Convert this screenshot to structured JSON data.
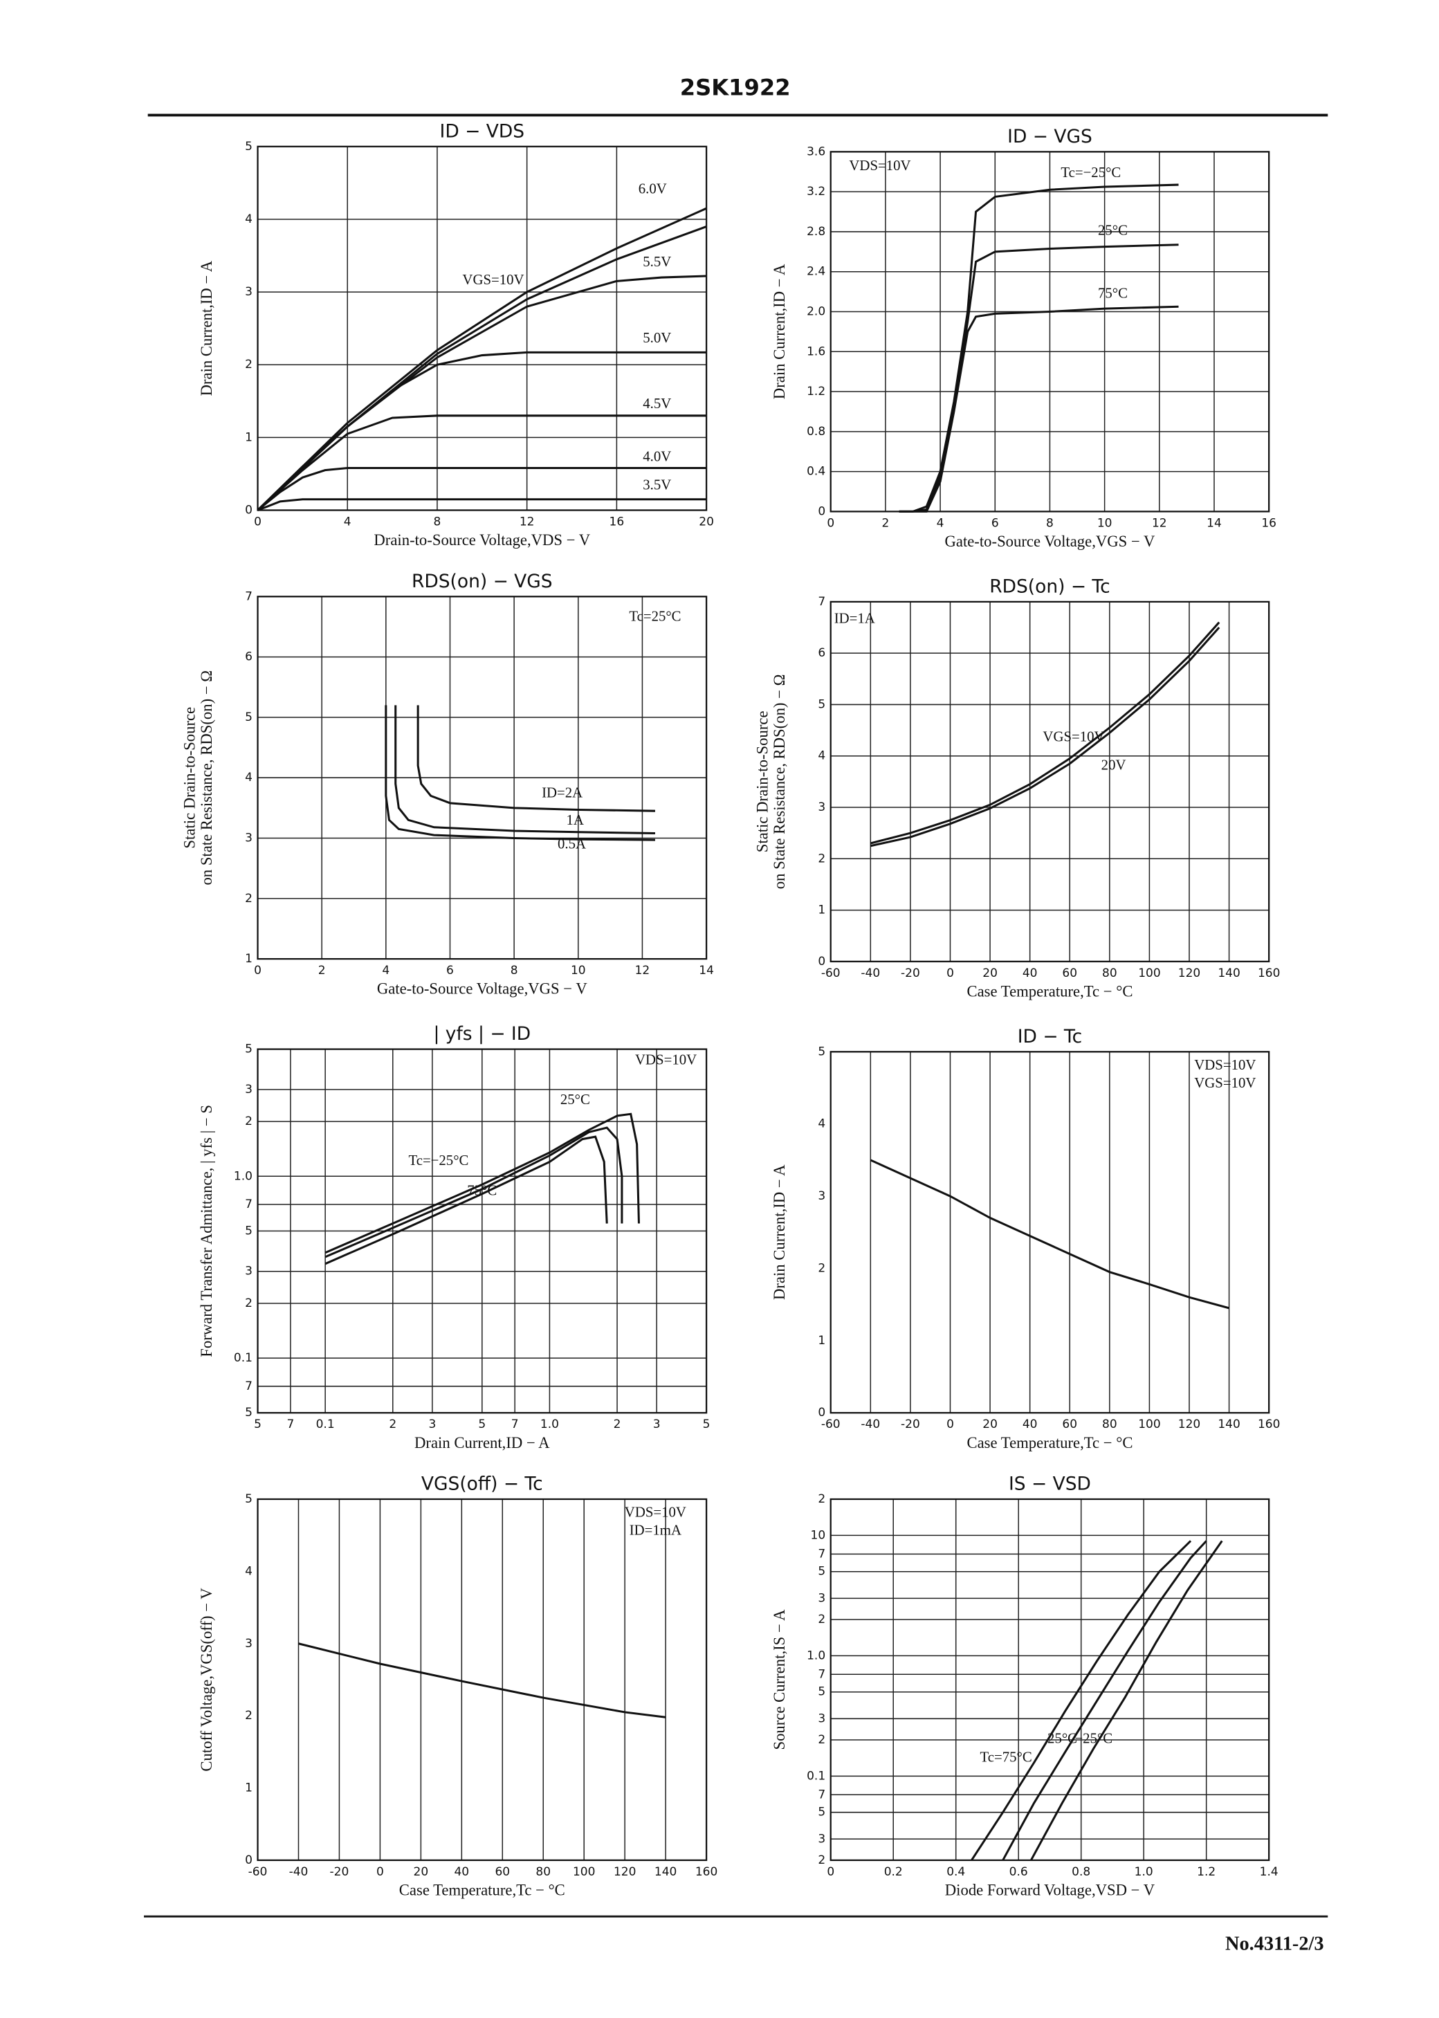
{
  "header": {
    "title": "2SK1922"
  },
  "footer": {
    "code": "No.4311-2/3"
  },
  "chart_data": [
    {
      "type": "line",
      "title": "ID − VDS",
      "x_label": "Drain-to-Source Voltage,VDS − V",
      "y_label": [
        "Drain Current,ID − A"
      ],
      "xlim": [
        0,
        20
      ],
      "xticks": [
        0,
        4,
        8,
        12,
        16,
        20
      ],
      "ylim": [
        0,
        5
      ],
      "yticks": [
        0,
        1,
        2,
        3,
        4,
        5
      ],
      "grid": "both",
      "series": [
        {
          "name": "3.5V",
          "color": "#111",
          "x": [
            0,
            1,
            2,
            3,
            20
          ],
          "values": [
            0,
            0.12,
            0.15,
            0.15,
            0.15
          ]
        },
        {
          "name": "4.0V",
          "color": "#111",
          "x": [
            0,
            1,
            2,
            3,
            4,
            20
          ],
          "values": [
            0,
            0.25,
            0.45,
            0.55,
            0.58,
            0.58
          ]
        },
        {
          "name": "4.5V",
          "color": "#111",
          "x": [
            0,
            2,
            4,
            6,
            8,
            20
          ],
          "values": [
            0,
            0.55,
            1.05,
            1.27,
            1.3,
            1.3
          ]
        },
        {
          "name": "5.0V",
          "color": "#111",
          "x": [
            0,
            2,
            4,
            6,
            8,
            10,
            12,
            20
          ],
          "values": [
            0,
            0.6,
            1.15,
            1.65,
            2.0,
            2.13,
            2.17,
            2.17
          ]
        },
        {
          "name": "5.5V",
          "color": "#111",
          "x": [
            0,
            4,
            8,
            12,
            16,
            18,
            20
          ],
          "values": [
            0,
            1.15,
            2.1,
            2.8,
            3.15,
            3.2,
            3.22
          ]
        },
        {
          "name": "6.0V",
          "color": "#111",
          "x": [
            0,
            4,
            8,
            12,
            16,
            20
          ],
          "values": [
            0,
            1.15,
            2.15,
            2.9,
            3.45,
            3.9
          ]
        },
        {
          "name": "VGS=10V",
          "color": "#111",
          "x": [
            0,
            4,
            8,
            12,
            16,
            20
          ],
          "values": [
            0,
            1.2,
            2.2,
            3.0,
            3.6,
            4.15
          ]
        }
      ],
      "annotations": [
        {
          "text": "6.0V",
          "x": 17.6,
          "y": 4.4
        },
        {
          "text": "5.5V",
          "x": 17.8,
          "y": 3.4
        },
        {
          "text": "5.0V",
          "x": 17.8,
          "y": 2.35
        },
        {
          "text": "4.5V",
          "x": 17.8,
          "y": 1.45
        },
        {
          "text": "4.0V",
          "x": 17.8,
          "y": 0.72
        },
        {
          "text": "3.5V",
          "x": 17.8,
          "y": 0.33
        },
        {
          "text": "VGS=10V",
          "x": 10.5,
          "y": 3.15
        }
      ]
    },
    {
      "type": "line",
      "title": "ID − VGS",
      "x_label": "Gate-to-Source Voltage,VGS − V",
      "y_label": [
        "Drain Current,ID − A"
      ],
      "xlim": [
        0,
        16
      ],
      "xticks": [
        0,
        2,
        4,
        6,
        8,
        10,
        12,
        14,
        16
      ],
      "ylim": [
        0,
        3.6
      ],
      "yticks": [
        0,
        0.4,
        0.8,
        1.2,
        1.6,
        {
          "value": 2,
          "label": "2.0"
        },
        2.4,
        2.8,
        3.2,
        3.6
      ],
      "grid": "both",
      "series": [
        {
          "name": "Tc=−25°C",
          "color": "#111",
          "x": [
            2.5,
            3,
            3.5,
            4,
            4.5,
            5,
            5.3,
            6,
            8,
            10,
            12.7
          ],
          "values": [
            0,
            0,
            0.05,
            0.4,
            1.1,
            2.0,
            3.0,
            3.15,
            3.22,
            3.25,
            3.27
          ]
        },
        {
          "name": "25°C",
          "color": "#111",
          "x": [
            2.5,
            3,
            3.5,
            4,
            4.5,
            5,
            5.3,
            6,
            8,
            10,
            12.7
          ],
          "values": [
            0,
            0,
            0.02,
            0.35,
            1.05,
            1.9,
            2.5,
            2.6,
            2.63,
            2.65,
            2.67
          ]
        },
        {
          "name": "75°C",
          "color": "#111",
          "x": [
            2.5,
            3,
            3.5,
            4,
            4.5,
            5,
            5.3,
            6,
            8,
            10,
            12.7
          ],
          "values": [
            0,
            0,
            0,
            0.3,
            1.0,
            1.8,
            1.95,
            1.98,
            2.0,
            2.03,
            2.05
          ]
        }
      ],
      "annotations": [
        {
          "text": "VDS=10V",
          "x": 1.8,
          "y": 3.45
        },
        {
          "text": "Tc=−25°C",
          "x": 9.5,
          "y": 3.38
        },
        {
          "text": "25°C",
          "x": 10.3,
          "y": 2.8
        },
        {
          "text": "75°C",
          "x": 10.3,
          "y": 2.17
        }
      ]
    },
    {
      "type": "line",
      "title": "RDS(on) − VGS",
      "x_label": "Gate-to-Source Voltage,VGS − V",
      "y_label": [
        "Static Drain-to-Source",
        "on State Resistance, RDS(on) − Ω"
      ],
      "xlim": [
        0,
        14
      ],
      "xticks": [
        0,
        2,
        4,
        6,
        8,
        10,
        12,
        14
      ],
      "ylim": [
        1,
        7
      ],
      "yticks": [
        1,
        2,
        3,
        4,
        5,
        6,
        7
      ],
      "grid": "both",
      "series": [
        {
          "name": "ID=2A",
          "color": "#111",
          "x": [
            5,
            5,
            5.1,
            5.4,
            6,
            8,
            10,
            12.4
          ],
          "values": [
            5.2,
            4.2,
            3.9,
            3.7,
            3.58,
            3.5,
            3.47,
            3.45
          ]
        },
        {
          "name": "1A",
          "color": "#111",
          "x": [
            4.3,
            4.3,
            4.4,
            4.7,
            5.5,
            8,
            10,
            12.4
          ],
          "values": [
            5.2,
            3.9,
            3.5,
            3.3,
            3.18,
            3.12,
            3.1,
            3.08
          ]
        },
        {
          "name": "0.5A",
          "color": "#111",
          "x": [
            4,
            4,
            4.1,
            4.4,
            5.5,
            8,
            10,
            12.4
          ],
          "values": [
            5.2,
            3.7,
            3.3,
            3.15,
            3.05,
            3.0,
            2.98,
            2.97
          ]
        }
      ],
      "annotations": [
        {
          "text": "Tc=25°C",
          "x": 12.4,
          "y": 6.65
        },
        {
          "text": "ID=2A",
          "x": 9.5,
          "y": 3.73
        },
        {
          "text": "1A",
          "x": 9.9,
          "y": 3.28
        },
        {
          "text": "0.5A",
          "x": 9.8,
          "y": 2.88
        }
      ]
    },
    {
      "type": "line",
      "title": "RDS(on) − Tc",
      "x_label": "Case Temperature,Tc − °C",
      "y_label": [
        "Static Drain-to-Source",
        "on State Resistance, RDS(on) − Ω"
      ],
      "xlim": [
        -60,
        160
      ],
      "xticks": [
        -60,
        -40,
        -20,
        0,
        20,
        40,
        60,
        80,
        100,
        120,
        140,
        160
      ],
      "ylim": [
        0,
        7
      ],
      "yticks": [
        0,
        1,
        2,
        3,
        4,
        5,
        6,
        7
      ],
      "grid": "both",
      "series": [
        {
          "name": "VGS=10V",
          "color": "#111",
          "x": [
            -40,
            -20,
            0,
            20,
            40,
            60,
            80,
            100,
            120,
            135
          ],
          "values": [
            2.3,
            2.5,
            2.75,
            3.05,
            3.45,
            3.95,
            4.55,
            5.2,
            5.95,
            6.6
          ]
        },
        {
          "name": "20V",
          "color": "#111",
          "x": [
            -40,
            -20,
            0,
            20,
            40,
            60,
            80,
            100,
            120,
            135
          ],
          "values": [
            2.25,
            2.42,
            2.68,
            2.98,
            3.37,
            3.85,
            4.45,
            5.1,
            5.85,
            6.5
          ]
        }
      ],
      "annotations": [
        {
          "text": "ID=1A",
          "x": -48,
          "y": 6.65
        },
        {
          "text": "VGS=10V",
          "x": 62,
          "y": 4.35
        },
        {
          "text": "20V",
          "x": 82,
          "y": 3.8
        }
      ]
    },
    {
      "type": "line",
      "title": "| yfs | − ID",
      "x_label": "Drain Current,ID − A",
      "y_label": [
        "Forward Transfer Admittance, | yfs | − S"
      ],
      "xlog": true,
      "ylog": true,
      "xlim": [
        0.05,
        5
      ],
      "ylim": [
        0.05,
        5
      ],
      "xticks": [
        {
          "value": 0.05,
          "label": "5"
        },
        {
          "value": 0.07,
          "label": "7"
        },
        0.1,
        {
          "value": 0.2,
          "label": "2"
        },
        {
          "value": 0.3,
          "label": "3"
        },
        {
          "value": 0.5,
          "label": "5"
        },
        {
          "value": 0.7,
          "label": "7"
        },
        {
          "value": 1,
          "label": "1.0"
        },
        2,
        3,
        5
      ],
      "yticks": [
        {
          "value": 0.05,
          "label": "5"
        },
        {
          "value": 0.07,
          "label": "7"
        },
        0.1,
        {
          "value": 0.2,
          "label": "2"
        },
        {
          "value": 0.3,
          "label": "3"
        },
        {
          "value": 0.5,
          "label": "5"
        },
        {
          "value": 0.7,
          "label": "7"
        },
        {
          "value": 1,
          "label": "1.0"
        },
        2,
        3,
        5
      ],
      "grid": "both",
      "series": [
        {
          "name": "25°C",
          "color": "#111",
          "x": [
            0.1,
            0.2,
            0.5,
            1.0,
            1.5,
            2.0,
            2.3,
            2.45,
            2.5
          ],
          "values": [
            0.38,
            0.55,
            0.9,
            1.35,
            1.8,
            2.15,
            2.2,
            1.5,
            0.55
          ]
        },
        {
          "name": "Tc=−25°C",
          "color": "#111",
          "x": [
            0.1,
            0.2,
            0.5,
            1.0,
            1.5,
            1.8,
            2.0,
            2.1,
            2.1
          ],
          "values": [
            0.36,
            0.52,
            0.85,
            1.3,
            1.75,
            1.85,
            1.6,
            1.0,
            0.55
          ]
        },
        {
          "name": "75°C",
          "color": "#111",
          "x": [
            0.1,
            0.2,
            0.5,
            1.0,
            1.4,
            1.6,
            1.75,
            1.8
          ],
          "values": [
            0.33,
            0.48,
            0.8,
            1.2,
            1.6,
            1.65,
            1.2,
            0.55
          ]
        }
      ],
      "annotations": [
        {
          "text": "VDS=10V",
          "x": 3.3,
          "y": 4.3
        },
        {
          "text": "25°C",
          "x": 1.3,
          "y": 2.6
        },
        {
          "text": "Tc=−25°C",
          "x": 0.32,
          "y": 1.2
        },
        {
          "text": "75°C",
          "x": 0.5,
          "y": 0.82
        }
      ]
    },
    {
      "type": "line",
      "title": "ID − Tc",
      "x_label": "Case Temperature,Tc − °C",
      "y_label": [
        "Drain Current,ID − A"
      ],
      "xlim": [
        -60,
        160
      ],
      "xticks": [
        -60,
        -40,
        -20,
        0,
        20,
        40,
        60,
        80,
        100,
        120,
        140,
        160
      ],
      "ylim": [
        0,
        5
      ],
      "yticks": [
        0,
        1,
        2,
        3,
        4,
        5
      ],
      "grid": "x",
      "series": [
        {
          "name": "ID",
          "color": "#111",
          "x": [
            -40,
            -20,
            0,
            20,
            40,
            60,
            80,
            100,
            120,
            140
          ],
          "values": [
            3.5,
            3.25,
            3.0,
            2.7,
            2.45,
            2.2,
            1.95,
            1.78,
            1.6,
            1.45
          ]
        }
      ],
      "annotations": [
        {
          "text": "VDS=10V",
          "x": 138,
          "y": 4.8
        },
        {
          "text": "VGS=10V",
          "x": 138,
          "y": 4.55
        }
      ]
    },
    {
      "type": "line",
      "title": "VGS(off) − Tc",
      "x_label": "Case Temperature,Tc − °C",
      "y_label": [
        "Cutoff Voltage,VGS(off) − V"
      ],
      "xlim": [
        -60,
        160
      ],
      "xticks": [
        -60,
        -40,
        -20,
        0,
        20,
        40,
        60,
        80,
        100,
        120,
        140,
        160
      ],
      "ylim": [
        0,
        5
      ],
      "yticks": [
        0,
        1,
        2,
        3,
        4,
        5
      ],
      "grid": "x",
      "series": [
        {
          "name": "VGS(off)",
          "color": "#111",
          "x": [
            -40,
            0,
            40,
            80,
            120,
            140
          ],
          "values": [
            3.0,
            2.72,
            2.48,
            2.25,
            2.05,
            1.98
          ]
        }
      ],
      "annotations": [
        {
          "text": "VDS=10V",
          "x": 135,
          "y": 4.8
        },
        {
          "text": "ID=1mA",
          "x": 135,
          "y": 4.55
        }
      ]
    },
    {
      "type": "line",
      "title": "IS − VSD",
      "x_label": "Diode Forward Voltage,VSD − V",
      "y_label": [
        "Source Current,IS − A"
      ],
      "ylog": true,
      "xlim": [
        0,
        1.4
      ],
      "xticks": [
        0,
        0.2,
        0.4,
        0.6,
        0.8,
        {
          "value": 1,
          "label": "1.0"
        },
        1.2,
        1.4
      ],
      "ylim": [
        0.02,
        20
      ],
      "yticks": [
        {
          "value": 0.02,
          "label": "2"
        },
        {
          "value": 0.03,
          "label": "3"
        },
        {
          "value": 0.05,
          "label": "5"
        },
        {
          "value": 0.07,
          "label": "7"
        },
        0.1,
        {
          "value": 0.2,
          "label": "2"
        },
        {
          "value": 0.3,
          "label": "3"
        },
        {
          "value": 0.5,
          "label": "5"
        },
        {
          "value": 0.7,
          "label": "7"
        },
        {
          "value": 1,
          "label": "1.0"
        },
        2,
        3,
        5,
        7,
        10,
        {
          "value": 20,
          "label": "2"
        }
      ],
      "grid": "both",
      "series": [
        {
          "name": "Tc=75°C",
          "color": "#111",
          "x": [
            0.45,
            0.55,
            0.65,
            0.75,
            0.85,
            0.95,
            1.05,
            1.15
          ],
          "values": [
            0.02,
            0.05,
            0.13,
            0.35,
            0.9,
            2.2,
            5,
            9
          ]
        },
        {
          "name": "25°C",
          "color": "#111",
          "x": [
            0.55,
            0.65,
            0.75,
            0.85,
            0.95,
            1.05,
            1.15,
            1.2
          ],
          "values": [
            0.02,
            0.06,
            0.16,
            0.42,
            1.1,
            2.8,
            6.5,
            9
          ]
        },
        {
          "name": "−25°C",
          "color": "#111",
          "x": [
            0.64,
            0.74,
            0.84,
            0.94,
            1.04,
            1.14,
            1.25
          ],
          "values": [
            0.02,
            0.06,
            0.17,
            0.45,
            1.3,
            3.5,
            9
          ]
        }
      ],
      "annotations": [
        {
          "text": "Tc=75°C",
          "x": 0.56,
          "y": 0.14
        },
        {
          "text": "25°C",
          "x": 0.74,
          "y": 0.2
        },
        {
          "text": "−25°C",
          "x": 0.84,
          "y": 0.2
        }
      ]
    }
  ]
}
